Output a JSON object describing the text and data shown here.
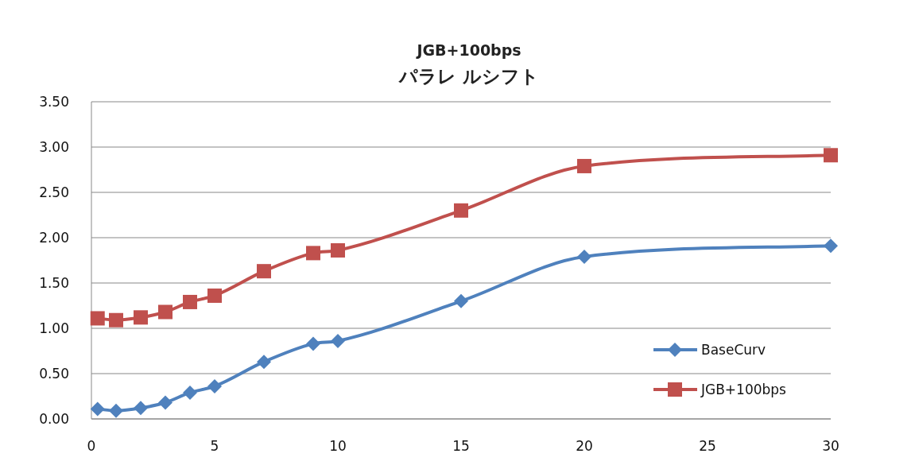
{
  "chart_data": {
    "type": "line",
    "title": "JGB+100bps",
    "subtitle": "パラレ ルシフト",
    "x": [
      0.25,
      1,
      2,
      3,
      4,
      5,
      7,
      9,
      10,
      15,
      20,
      30
    ],
    "series": [
      {
        "name": "BaseCurv",
        "color": "#4f81bd",
        "marker": "diamond",
        "values": [
          0.11,
          0.09,
          0.12,
          0.18,
          0.29,
          0.36,
          0.63,
          0.83,
          0.86,
          1.3,
          1.79,
          1.91
        ]
      },
      {
        "name": "JGB+100bps",
        "color": "#c0504d",
        "marker": "square",
        "values": [
          1.11,
          1.09,
          1.12,
          1.18,
          1.29,
          1.36,
          1.63,
          1.83,
          1.86,
          2.3,
          2.79,
          2.91
        ]
      }
    ],
    "xlim": [
      0,
      30
    ],
    "xticks": [
      0,
      5,
      10,
      15,
      20,
      25,
      30
    ],
    "ylim": [
      0,
      3.5
    ],
    "yticks": [
      {
        "value": 0,
        "label": "0.00"
      },
      {
        "value": 0.5,
        "label": "0.50"
      },
      {
        "value": 1,
        "label": "1.00"
      },
      {
        "value": 1.5,
        "label": "1.50"
      },
      {
        "value": 2,
        "label": "2.00"
      },
      {
        "value": 2.5,
        "label": "2.50"
      },
      {
        "value": 3,
        "label": "3.00"
      },
      {
        "value": 3.5,
        "label": "3.50"
      }
    ],
    "grid": "y",
    "legend": "bottom right"
  }
}
